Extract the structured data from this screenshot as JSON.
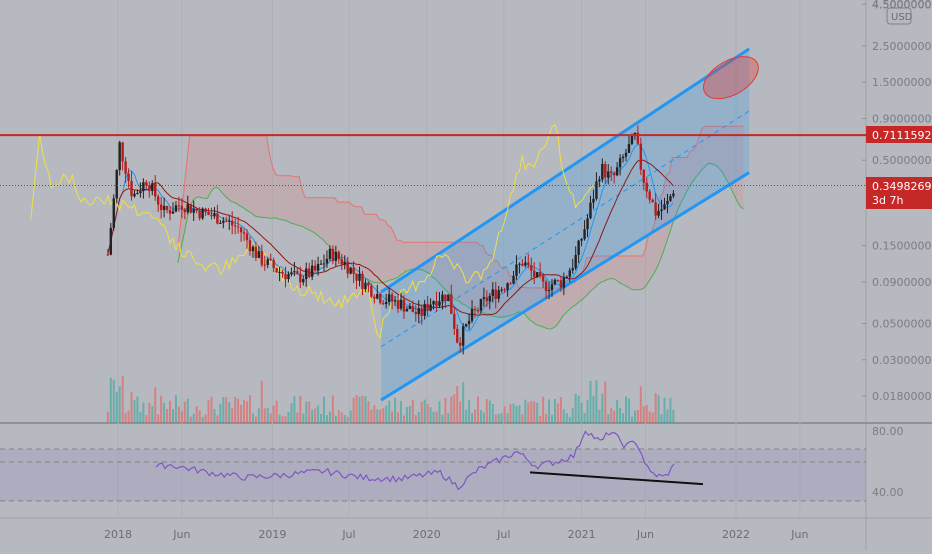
{
  "currency_button": "USD",
  "price_scale": {
    "labels": [
      "4.50000000",
      "2.50000000",
      "1.50000000",
      "0.90000000",
      "0.50000000",
      "0.15000000",
      "0.09000000",
      "0.05000000",
      "0.03000000",
      "0.01800000"
    ],
    "resistance_tag": "0.71115926",
    "current_price_tag": "0.34982695",
    "countdown_tag": "3d 7h"
  },
  "rsi_scale": {
    "labels": [
      "80.00",
      "40.00"
    ]
  },
  "time_axis": {
    "labels": [
      "2018",
      "Jun",
      "2019",
      "Jul",
      "2020",
      "Jul",
      "2021",
      "Jun",
      "2022",
      "Jun"
    ]
  },
  "colors": {
    "background": "#b6b9bf",
    "resistance": "#c62828",
    "channel": "#2196f3",
    "rsi": "#7e57c2",
    "candle_up": "#222222",
    "candle_down": "#b71c1c"
  },
  "chart_data": [
    {
      "type": "candlestick",
      "x_axis": "date",
      "y_scale": "log",
      "ylim": [
        0.012,
        4.5
      ],
      "resistance_level": 0.71115926,
      "last_price": 0.34982695,
      "close_anchors": [
        {
          "date": "2017-12-01",
          "close": 0.09
        },
        {
          "date": "2018-01-05",
          "close": 0.62
        },
        {
          "date": "2018-02-05",
          "close": 0.3
        },
        {
          "date": "2018-03-10",
          "close": 0.38
        },
        {
          "date": "2018-04-20",
          "close": 0.24
        },
        {
          "date": "2018-06-01",
          "close": 0.27
        },
        {
          "date": "2018-07-15",
          "close": 0.24
        },
        {
          "date": "2018-09-01",
          "close": 0.22
        },
        {
          "date": "2018-10-15",
          "close": 0.19
        },
        {
          "date": "2018-12-01",
          "close": 0.125
        },
        {
          "date": "2019-01-15",
          "close": 0.105
        },
        {
          "date": "2019-03-01",
          "close": 0.095
        },
        {
          "date": "2019-04-15",
          "close": 0.105
        },
        {
          "date": "2019-05-20",
          "close": 0.135
        },
        {
          "date": "2019-06-20",
          "close": 0.118
        },
        {
          "date": "2019-08-01",
          "close": 0.09
        },
        {
          "date": "2019-09-15",
          "close": 0.072
        },
        {
          "date": "2019-11-01",
          "close": 0.066
        },
        {
          "date": "2019-12-15",
          "close": 0.056
        },
        {
          "date": "2020-01-15",
          "close": 0.07
        },
        {
          "date": "2020-02-20",
          "close": 0.075
        },
        {
          "date": "2020-03-15",
          "close": 0.038
        },
        {
          "date": "2020-04-15",
          "close": 0.055
        },
        {
          "date": "2020-05-20",
          "close": 0.07
        },
        {
          "date": "2020-07-01",
          "close": 0.085
        },
        {
          "date": "2020-08-15",
          "close": 0.12
        },
        {
          "date": "2020-10-01",
          "close": 0.085
        },
        {
          "date": "2020-11-15",
          "close": 0.09
        },
        {
          "date": "2020-12-15",
          "close": 0.12
        },
        {
          "date": "2021-01-15",
          "close": 0.22
        },
        {
          "date": "2021-02-15",
          "close": 0.45
        },
        {
          "date": "2021-03-15",
          "close": 0.38
        },
        {
          "date": "2021-04-15",
          "close": 0.55
        },
        {
          "date": "2021-05-08",
          "close": 0.7
        },
        {
          "date": "2021-05-25",
          "close": 0.4
        },
        {
          "date": "2021-06-25",
          "close": 0.24
        },
        {
          "date": "2021-07-20",
          "close": 0.26
        },
        {
          "date": "2021-08-10",
          "close": 0.35
        }
      ],
      "ascending_channel": {
        "upper": [
          {
            "date": "2019-09-15",
            "price": 0.078
          },
          {
            "date": "2022-02-01",
            "price": 2.4
          }
        ],
        "lower": [
          {
            "date": "2019-09-15",
            "price": 0.017
          },
          {
            "date": "2022-02-01",
            "price": 0.42
          }
        ],
        "midline": [
          {
            "date": "2019-09-15",
            "price": 0.036
          },
          {
            "date": "2022-02-01",
            "price": 1.0
          }
        ]
      },
      "target_ellipse": {
        "date": "2021-12-20",
        "price": 1.6
      },
      "volume": "bars below price panel"
    },
    {
      "type": "line",
      "name": "",
      "x_axis": "date",
      "ylim": [
        30,
        88
      ],
      "levels": [
        70,
        60,
        30
      ],
      "points": [
        {
          "date": "2018-04-01",
          "value": 56
        },
        {
          "date": "2018-05-01",
          "value": 58
        },
        {
          "date": "2018-08-01",
          "value": 52
        },
        {
          "date": "2018-11-01",
          "value": 48
        },
        {
          "date": "2019-02-01",
          "value": 50
        },
        {
          "date": "2019-05-01",
          "value": 53
        },
        {
          "date": "2019-08-01",
          "value": 48
        },
        {
          "date": "2019-11-01",
          "value": 47
        },
        {
          "date": "2020-02-01",
          "value": 52
        },
        {
          "date": "2020-03-15",
          "value": 41
        },
        {
          "date": "2020-05-01",
          "value": 54
        },
        {
          "date": "2020-07-01",
          "value": 63
        },
        {
          "date": "2020-08-01",
          "value": 68
        },
        {
          "date": "2020-09-15",
          "value": 57
        },
        {
          "date": "2020-11-01",
          "value": 60
        },
        {
          "date": "2020-12-15",
          "value": 65
        },
        {
          "date": "2021-01-10",
          "value": 85
        },
        {
          "date": "2021-02-15",
          "value": 75
        },
        {
          "date": "2021-03-10",
          "value": 84
        },
        {
          "date": "2021-04-15",
          "value": 72
        },
        {
          "date": "2021-05-10",
          "value": 76
        },
        {
          "date": "2021-06-10",
          "value": 52
        },
        {
          "date": "2021-07-15",
          "value": 48
        },
        {
          "date": "2021-08-10",
          "value": 58
        }
      ],
      "divergence_line": [
        {
          "date": "2020-09-01",
          "value": 52
        },
        {
          "date": "2021-10-15",
          "value": 43
        }
      ]
    }
  ]
}
